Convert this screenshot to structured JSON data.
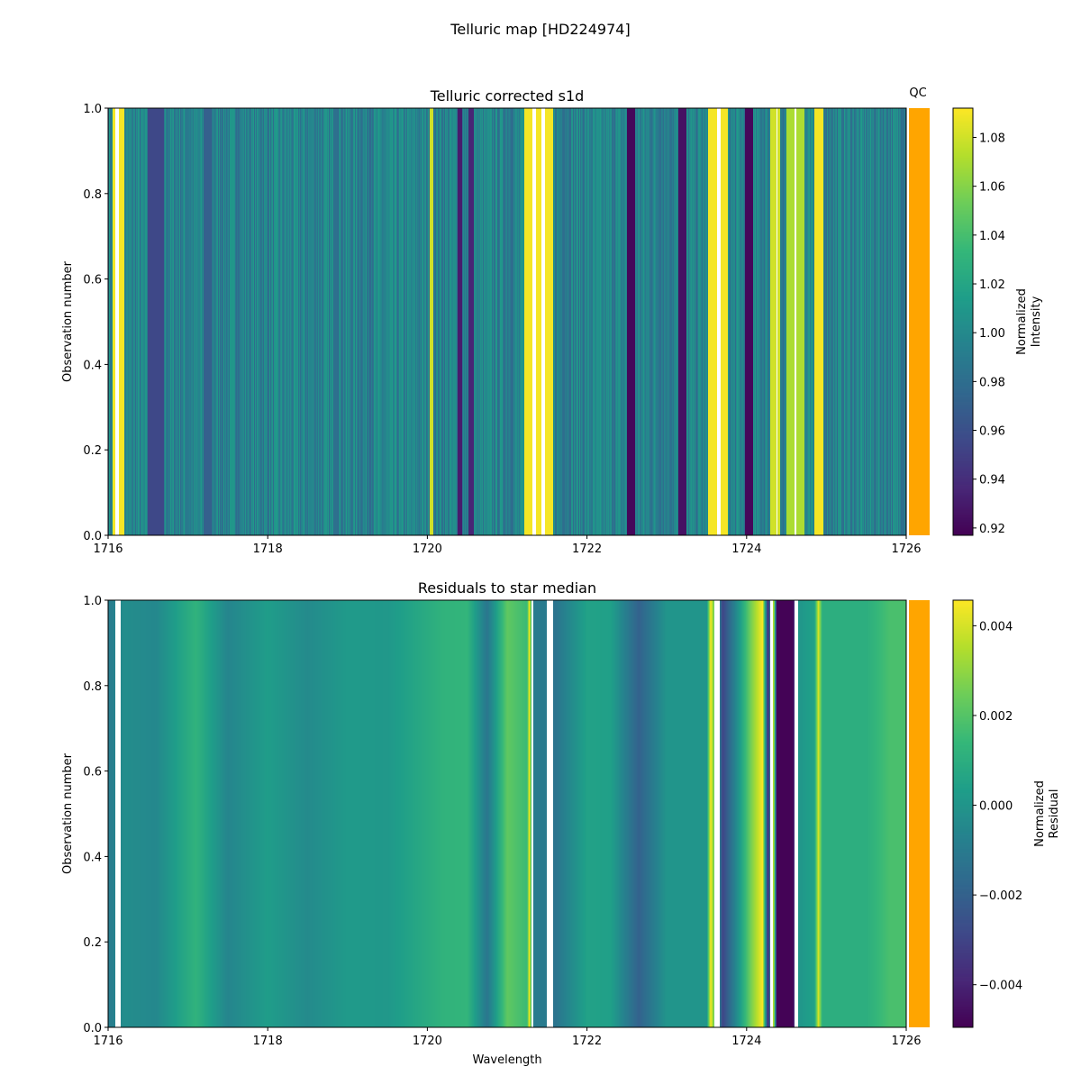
{
  "suptitle": "Telluric map [HD224974]",
  "qc_label": "QC",
  "qc_color": "#FFA500",
  "nan_color": "#FFFFFF",
  "colormap": "viridis",
  "chart_data": [
    {
      "type": "heatmap",
      "title": "Telluric corrected s1d",
      "xlabel": "",
      "ylabel": "Observation number",
      "colorbar_label": "Normalized\nIntensity",
      "colorbar_label_lines": [
        "Normalized",
        "Intensity"
      ],
      "xlim": [
        1716,
        1726
      ],
      "ylim": [
        0,
        1
      ],
      "clim": [
        0.917,
        1.092
      ],
      "xticks": [
        "1716",
        "1718",
        "1720",
        "1722",
        "1724",
        "1726"
      ],
      "yticks": [
        "0.0",
        "0.2",
        "0.4",
        "0.6",
        "0.8",
        "1.0"
      ],
      "cticks": [
        "0.92",
        "0.94",
        "0.96",
        "0.98",
        "1.00",
        "1.02",
        "1.04",
        "1.06",
        "1.08"
      ],
      "baseline": 0.995,
      "features": [
        [
          1716.06,
          1716.2,
          1.09
        ],
        [
          1716.5,
          1716.7,
          0.955
        ],
        [
          1717.2,
          1717.3,
          0.97
        ],
        [
          1720.03,
          1720.07,
          1.08
        ],
        [
          1720.38,
          1720.44,
          0.93
        ],
        [
          1720.52,
          1720.58,
          0.935
        ],
        [
          1721.22,
          1721.58,
          1.09
        ],
        [
          1722.5,
          1722.6,
          0.92
        ],
        [
          1723.15,
          1723.25,
          0.925
        ],
        [
          1723.52,
          1723.76,
          1.09
        ],
        [
          1723.98,
          1724.08,
          0.92
        ],
        [
          1724.3,
          1724.42,
          1.08
        ],
        [
          1724.5,
          1724.72,
          1.07
        ],
        [
          1724.85,
          1724.96,
          1.09
        ]
      ],
      "nan_ranges": [
        [
          1716.09,
          1716.13
        ],
        [
          1721.32,
          1721.36
        ],
        [
          1721.43,
          1721.47
        ],
        [
          1723.63,
          1723.68
        ],
        [
          1724.37,
          1724.39
        ],
        [
          1724.6,
          1724.62
        ]
      ]
    },
    {
      "type": "heatmap",
      "title": "Residuals to star median",
      "xlabel": "Wavelength",
      "ylabel": "Observation number",
      "colorbar_label": "Normalized\nResidual",
      "colorbar_label_lines": [
        "Normalized",
        "Residual"
      ],
      "xlim": [
        1716,
        1726
      ],
      "ylim": [
        0,
        1
      ],
      "clim": [
        -0.00495,
        0.00457
      ],
      "xticks": [
        "1716",
        "1718",
        "1720",
        "1722",
        "1724",
        "1726"
      ],
      "yticks": [
        "0.0",
        "0.2",
        "0.4",
        "0.6",
        "0.8",
        "1.0"
      ],
      "cticks": [
        "−0.004",
        "−0.002",
        "0.000",
        "0.002",
        "0.004"
      ],
      "profile": [
        [
          1716.0,
          -0.001
        ],
        [
          1716.2,
          -0.0003
        ],
        [
          1716.6,
          -0.0005
        ],
        [
          1717.1,
          0.0012
        ],
        [
          1717.5,
          -0.0006
        ],
        [
          1718.0,
          0.0003
        ],
        [
          1718.5,
          -0.0004
        ],
        [
          1719.0,
          0.0002
        ],
        [
          1719.5,
          0.0001
        ],
        [
          1720.2,
          0.0012
        ],
        [
          1720.5,
          0.0013
        ],
        [
          1720.75,
          -0.0012
        ],
        [
          1721.0,
          0.0022
        ],
        [
          1721.25,
          0.0015
        ],
        [
          1721.28,
          0.0045
        ],
        [
          1721.32,
          -0.001
        ],
        [
          1721.5,
          -0.001
        ],
        [
          1721.6,
          -0.0013
        ],
        [
          1722.0,
          0.0005
        ],
        [
          1722.3,
          0.0004
        ],
        [
          1722.65,
          -0.002
        ],
        [
          1723.0,
          0.0
        ],
        [
          1723.5,
          0.0
        ],
        [
          1723.55,
          0.0045
        ],
        [
          1723.7,
          -0.003
        ],
        [
          1723.9,
          0.0
        ],
        [
          1724.05,
          0.0025
        ],
        [
          1724.2,
          0.0045
        ],
        [
          1724.27,
          -0.004
        ],
        [
          1724.34,
          0.004
        ],
        [
          1724.38,
          -0.0049
        ],
        [
          1724.58,
          -0.0049
        ],
        [
          1724.65,
          0.0
        ],
        [
          1724.85,
          0.0005
        ],
        [
          1724.9,
          0.004
        ],
        [
          1724.95,
          0.001
        ],
        [
          1725.5,
          0.001
        ],
        [
          1725.8,
          0.0018
        ],
        [
          1726.0,
          0.0018
        ]
      ],
      "nan_ranges": [
        [
          1716.09,
          1716.16
        ],
        [
          1721.3,
          1721.33
        ],
        [
          1721.5,
          1721.57
        ],
        [
          1723.6,
          1723.66
        ],
        [
          1724.3,
          1724.33
        ],
        [
          1724.6,
          1724.64
        ]
      ]
    }
  ]
}
